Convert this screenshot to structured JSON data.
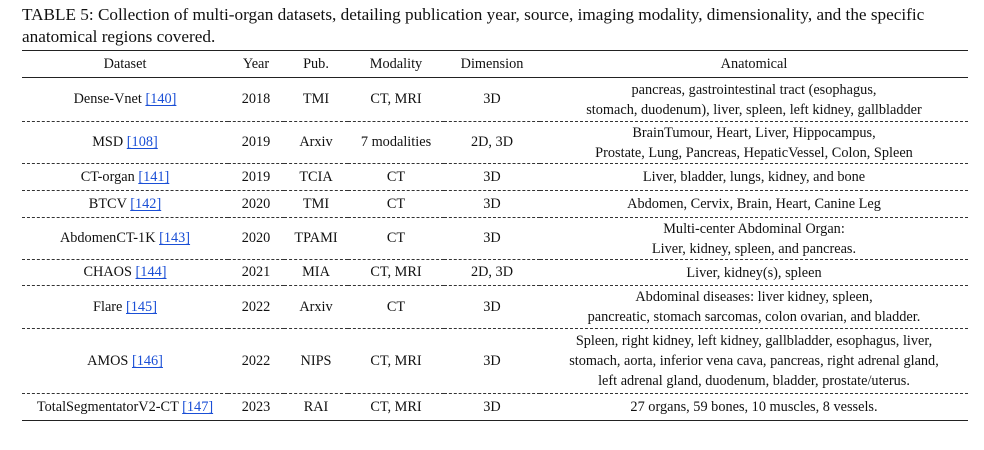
{
  "caption": "TABLE 5: Collection of multi-organ datasets, detailing publication year, source, imaging modality, dimensionality, and the specific anatomical regions covered.",
  "headers": {
    "dataset": "Dataset",
    "year": "Year",
    "pub": "Pub.",
    "modality": "Modality",
    "dimension": "Dimension",
    "anatomical": "Anatomical"
  },
  "rows": [
    {
      "dataset": "Dense-Vnet",
      "cite": "[140]",
      "year": "2018",
      "pub": "TMI",
      "modality": "CT, MRI",
      "dimension": "3D",
      "anatomical": [
        "pancreas, gastrointestinal tract (esophagus,",
        "stomach, duodenum), liver, spleen, left kidney, gallbladder"
      ]
    },
    {
      "dataset": "MSD",
      "cite": "[108]",
      "year": "2019",
      "pub": "Arxiv",
      "modality": "7 modalities",
      "dimension": "2D, 3D",
      "anatomical": [
        "BrainTumour, Heart, Liver, Hippocampus,",
        "Prostate, Lung, Pancreas, HepaticVessel, Colon, Spleen"
      ]
    },
    {
      "dataset": "CT-organ",
      "cite": "[141]",
      "year": "2019",
      "pub": "TCIA",
      "modality": "CT",
      "dimension": "3D",
      "anatomical": [
        "Liver, bladder, lungs, kidney, and bone"
      ]
    },
    {
      "dataset": "BTCV",
      "cite": "[142]",
      "year": "2020",
      "pub": "TMI",
      "modality": "CT",
      "dimension": "3D",
      "anatomical": [
        "Abdomen, Cervix, Brain, Heart, Canine Leg"
      ]
    },
    {
      "dataset": "AbdomenCT-1K",
      "cite": "[143]",
      "year": "2020",
      "pub": "TPAMI",
      "modality": "CT",
      "dimension": "3D",
      "anatomical": [
        "Multi-center Abdominal Organ:",
        "Liver, kidney, spleen, and pancreas."
      ]
    },
    {
      "dataset": "CHAOS",
      "cite": "[144]",
      "year": "2021",
      "pub": "MIA",
      "modality": "CT, MRI",
      "dimension": "2D, 3D",
      "anatomical": [
        "Liver, kidney(s), spleen"
      ]
    },
    {
      "dataset": "Flare",
      "cite": "[145]",
      "year": "2022",
      "pub": "Arxiv",
      "modality": "CT",
      "dimension": "3D",
      "anatomical": [
        "Abdominal diseases: liver kidney, spleen,",
        "pancreatic, stomach sarcomas, colon ovarian, and bladder."
      ]
    },
    {
      "dataset": "AMOS",
      "cite": "[146]",
      "year": "2022",
      "pub": "NIPS",
      "modality": "CT, MRI",
      "dimension": "3D",
      "anatomical": [
        "Spleen, right kidney, left kidney, gallbladder, esophagus, liver,",
        "stomach, aorta, inferior vena cava, pancreas, right adrenal gland,",
        "left adrenal gland, duodenum, bladder, prostate/uterus."
      ]
    },
    {
      "dataset": "TotalSegmentatorV2-CT",
      "cite": "[147]",
      "year": "2023",
      "pub": "RAI",
      "modality": "CT, MRI",
      "dimension": "3D",
      "anatomical": [
        "27 organs, 59 bones, 10 muscles, 8 vessels."
      ]
    }
  ]
}
